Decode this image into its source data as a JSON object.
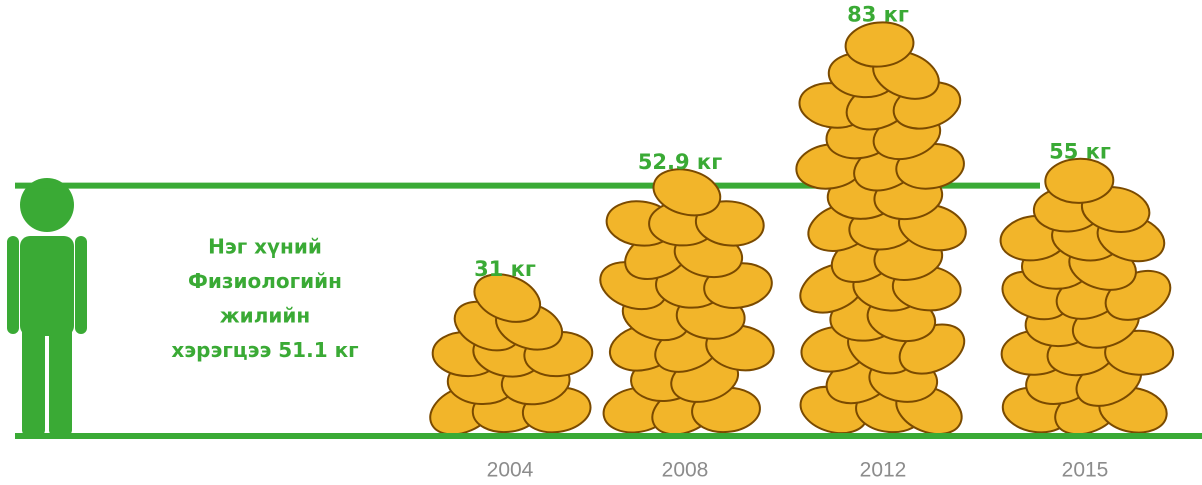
{
  "chart_data": {
    "type": "bar",
    "categories": [
      "2004",
      "2008",
      "2012",
      "2015"
    ],
    "values": [
      31,
      52.9,
      83,
      55
    ],
    "value_labels": [
      "31 кг",
      "52.9 кг",
      "83 кг",
      "55 кг"
    ],
    "color": "#f2b52a",
    "reference": {
      "value": 51.1,
      "label": [
        "Нэг хүний",
        "Физиологийн",
        "жилийн",
        "хэрэгцээ 51.1 кг"
      ]
    },
    "label_color": "#3aaa35"
  }
}
